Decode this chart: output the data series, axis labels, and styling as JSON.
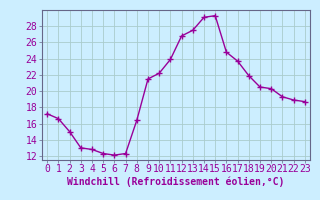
{
  "x": [
    0,
    1,
    2,
    3,
    4,
    5,
    6,
    7,
    8,
    9,
    10,
    11,
    12,
    13,
    14,
    15,
    16,
    17,
    18,
    19,
    20,
    21,
    22,
    23
  ],
  "y": [
    17.2,
    16.6,
    15.0,
    13.0,
    12.8,
    12.3,
    12.1,
    12.3,
    16.4,
    21.5,
    22.2,
    23.9,
    26.8,
    27.5,
    29.1,
    29.3,
    24.8,
    23.7,
    21.9,
    20.5,
    20.3,
    19.3,
    18.9,
    18.7
  ],
  "line_color": "#990099",
  "marker": "+",
  "marker_size": 4,
  "bg_color": "#cceeff",
  "grid_color": "#aacccc",
  "xlabel": "Windchill (Refroidissement éolien,°C)",
  "ylim": [
    11.5,
    30
  ],
  "xlim": [
    -0.5,
    23.5
  ],
  "yticks": [
    12,
    14,
    16,
    18,
    20,
    22,
    24,
    26,
    28
  ],
  "xticks": [
    0,
    1,
    2,
    3,
    4,
    5,
    6,
    7,
    8,
    9,
    10,
    11,
    12,
    13,
    14,
    15,
    16,
    17,
    18,
    19,
    20,
    21,
    22,
    23
  ],
  "xlabel_fontsize": 7,
  "tick_fontsize": 7,
  "line_width": 1.0,
  "marker_color": "#990099"
}
